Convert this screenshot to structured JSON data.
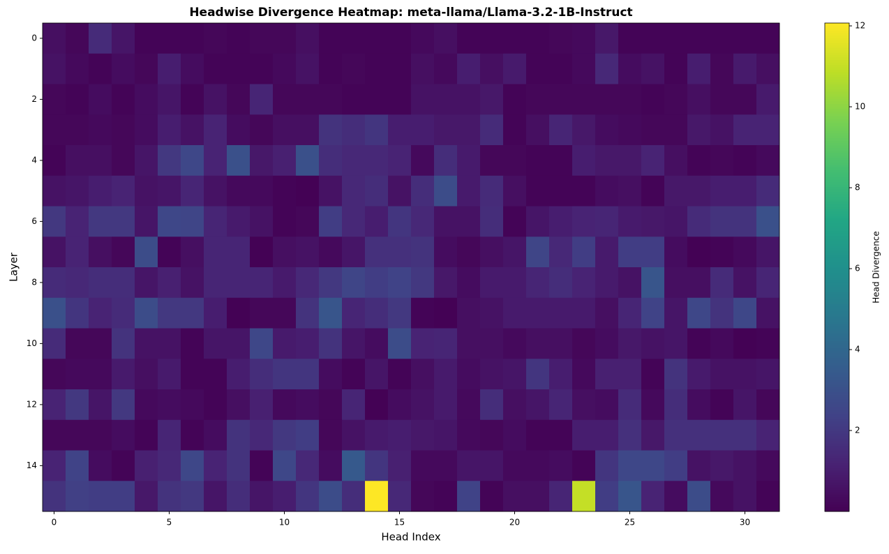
{
  "chart_data": {
    "type": "heatmap",
    "title": "Headwise Divergence Heatmap: meta-llama/Llama-3.2-1B-Instruct",
    "x_label": "Head Index",
    "y_label": "Layer",
    "colorbar_label": "Head Divergence",
    "colormap": "viridis",
    "xlim": [
      -0.5,
      31.5
    ],
    "ylim": [
      15.5,
      -0.5
    ],
    "xticks": [
      0,
      5,
      10,
      15,
      20,
      25,
      30
    ],
    "yticks": [
      0,
      2,
      4,
      6,
      8,
      10,
      12,
      14
    ],
    "clim": [
      0,
      12.07
    ],
    "colorbar_ticks": [
      2,
      4,
      6,
      8,
      10,
      12
    ],
    "values": [
      [
        0.5,
        0.2,
        1.5,
        0.7,
        0.1,
        0.1,
        0.1,
        0.2,
        0.1,
        0.2,
        0.2,
        0.5,
        0.1,
        0.1,
        0.1,
        0.1,
        0.3,
        0.5,
        0.1,
        0.1,
        0.1,
        0.1,
        0.2,
        0.3,
        0.8,
        0.1,
        0.1,
        0.1,
        0.1,
        0.1,
        0.1,
        0.1
      ],
      [
        0.6,
        0.3,
        0.1,
        0.4,
        0.2,
        1.0,
        0.4,
        0.1,
        0.1,
        0.1,
        0.3,
        0.6,
        0.1,
        0.2,
        0.1,
        0.1,
        0.5,
        0.3,
        1.0,
        0.5,
        0.9,
        0.1,
        0.1,
        0.3,
        1.4,
        0.4,
        0.6,
        0.1,
        1.0,
        0.2,
        0.9,
        0.5
      ],
      [
        0.2,
        0.1,
        0.4,
        0.1,
        0.4,
        0.7,
        0.1,
        0.6,
        0.2,
        1.3,
        0.2,
        0.2,
        0.2,
        0.1,
        0.1,
        0.1,
        0.6,
        0.6,
        0.6,
        0.8,
        0.1,
        0.2,
        0.2,
        0.2,
        0.2,
        0.2,
        0.1,
        0.2,
        0.5,
        0.2,
        0.2,
        0.9
      ],
      [
        0.2,
        0.2,
        0.3,
        0.2,
        0.4,
        1.0,
        0.6,
        1.2,
        0.4,
        0.2,
        0.5,
        0.5,
        1.8,
        1.6,
        1.9,
        1.0,
        1.0,
        0.8,
        0.8,
        1.5,
        0.1,
        0.5,
        1.3,
        0.8,
        0.4,
        0.3,
        0.2,
        0.2,
        0.8,
        0.6,
        1.2,
        1.2
      ],
      [
        0.1,
        0.5,
        0.5,
        0.2,
        0.7,
        2.0,
        2.6,
        1.2,
        3.0,
        0.8,
        1.1,
        3.0,
        1.6,
        1.4,
        1.4,
        1.2,
        0.3,
        1.6,
        0.9,
        0.2,
        0.2,
        0.1,
        0.1,
        1.0,
        0.8,
        0.8,
        1.2,
        0.5,
        0.1,
        0.2,
        0.1,
        0.3
      ],
      [
        0.6,
        0.7,
        1.0,
        1.2,
        0.6,
        0.7,
        1.3,
        0.6,
        0.3,
        0.3,
        0.1,
        0.05,
        0.6,
        1.4,
        1.6,
        0.6,
        1.6,
        2.8,
        0.9,
        1.5,
        0.5,
        0.1,
        0.1,
        0.1,
        0.4,
        0.5,
        0.1,
        0.8,
        0.8,
        1.0,
        1.0,
        1.5
      ],
      [
        2.0,
        1.2,
        2.0,
        2.0,
        0.7,
        2.6,
        2.5,
        1.3,
        0.9,
        0.6,
        0.1,
        0.2,
        2.2,
        1.4,
        1.0,
        1.9,
        1.4,
        0.6,
        0.6,
        1.6,
        0.1,
        0.7,
        1.0,
        1.2,
        1.3,
        0.9,
        0.8,
        0.7,
        1.5,
        1.8,
        1.8,
        3.0
      ],
      [
        0.6,
        1.2,
        0.5,
        0.2,
        2.8,
        0.1,
        0.5,
        1.3,
        1.3,
        0.05,
        0.5,
        0.6,
        0.3,
        0.7,
        1.7,
        1.7,
        1.8,
        0.4,
        0.2,
        0.5,
        0.7,
        2.5,
        1.4,
        2.2,
        0.9,
        2.2,
        2.2,
        0.4,
        0.05,
        0.1,
        0.3,
        0.7
      ],
      [
        1.5,
        1.4,
        1.6,
        1.6,
        0.7,
        1.1,
        0.6,
        1.3,
        1.3,
        1.3,
        0.9,
        1.4,
        2.0,
        2.5,
        2.2,
        2.4,
        2.0,
        0.8,
        0.4,
        0.9,
        0.9,
        1.3,
        1.6,
        1.2,
        0.9,
        0.6,
        3.2,
        0.5,
        0.5,
        1.5,
        0.6,
        1.3
      ],
      [
        3.0,
        1.9,
        1.2,
        1.5,
        2.8,
        2.0,
        2.0,
        1.0,
        0.05,
        0.2,
        0.2,
        1.8,
        3.2,
        1.3,
        1.6,
        2.0,
        0.1,
        0.05,
        0.5,
        0.6,
        0.9,
        0.9,
        0.9,
        0.9,
        0.5,
        1.3,
        2.4,
        0.7,
        2.6,
        1.8,
        2.6,
        0.6
      ],
      [
        1.5,
        0.2,
        0.2,
        1.8,
        0.6,
        0.6,
        0.1,
        0.7,
        0.7,
        2.6,
        0.9,
        1.0,
        1.8,
        0.7,
        0.4,
        2.8,
        1.2,
        1.3,
        0.5,
        0.5,
        0.3,
        0.5,
        0.5,
        0.2,
        0.4,
        0.8,
        0.6,
        0.7,
        0.1,
        0.3,
        0.05,
        0.1
      ],
      [
        0.2,
        0.3,
        0.3,
        0.9,
        0.5,
        0.9,
        0.1,
        0.1,
        1.0,
        1.6,
        1.9,
        1.9,
        0.4,
        0.1,
        0.7,
        0.1,
        0.5,
        0.9,
        0.4,
        0.6,
        0.7,
        1.9,
        1.0,
        0.3,
        1.1,
        1.1,
        0.1,
        1.8,
        0.9,
        0.6,
        0.6,
        0.7
      ],
      [
        1.2,
        2.0,
        0.7,
        2.0,
        0.3,
        0.4,
        0.3,
        0.1,
        0.5,
        1.1,
        0.3,
        0.4,
        0.2,
        1.3,
        0.05,
        0.4,
        0.6,
        0.9,
        0.3,
        1.6,
        0.5,
        0.7,
        1.3,
        0.5,
        0.4,
        1.5,
        0.3,
        1.6,
        0.4,
        0.1,
        0.7,
        0.2
      ],
      [
        0.2,
        0.2,
        0.2,
        0.4,
        0.1,
        1.3,
        0.1,
        0.4,
        1.8,
        1.4,
        2.0,
        2.2,
        0.2,
        0.6,
        0.9,
        1.0,
        0.8,
        0.7,
        0.3,
        0.2,
        0.4,
        0.1,
        0.1,
        1.0,
        1.0,
        1.7,
        0.8,
        1.7,
        1.7,
        1.7,
        1.7,
        1.2
      ],
      [
        1.2,
        2.4,
        0.4,
        0.1,
        1.1,
        1.4,
        2.6,
        1.2,
        1.8,
        0.1,
        2.6,
        1.4,
        0.4,
        3.4,
        1.9,
        1.1,
        0.3,
        0.3,
        0.7,
        0.7,
        0.3,
        0.3,
        0.4,
        0.1,
        1.9,
        2.6,
        2.6,
        2.2,
        0.6,
        0.8,
        0.6,
        0.3
      ],
      [
        1.8,
        2.3,
        2.2,
        2.2,
        0.8,
        1.8,
        2.0,
        0.7,
        1.6,
        0.7,
        1.0,
        1.9,
        2.8,
        1.6,
        12.07,
        1.4,
        0.2,
        0.1,
        2.4,
        0.1,
        0.5,
        0.5,
        1.3,
        11.0,
        2.2,
        3.2,
        1.2,
        0.4,
        2.8,
        0.3,
        0.6,
        0.1
      ]
    ]
  }
}
